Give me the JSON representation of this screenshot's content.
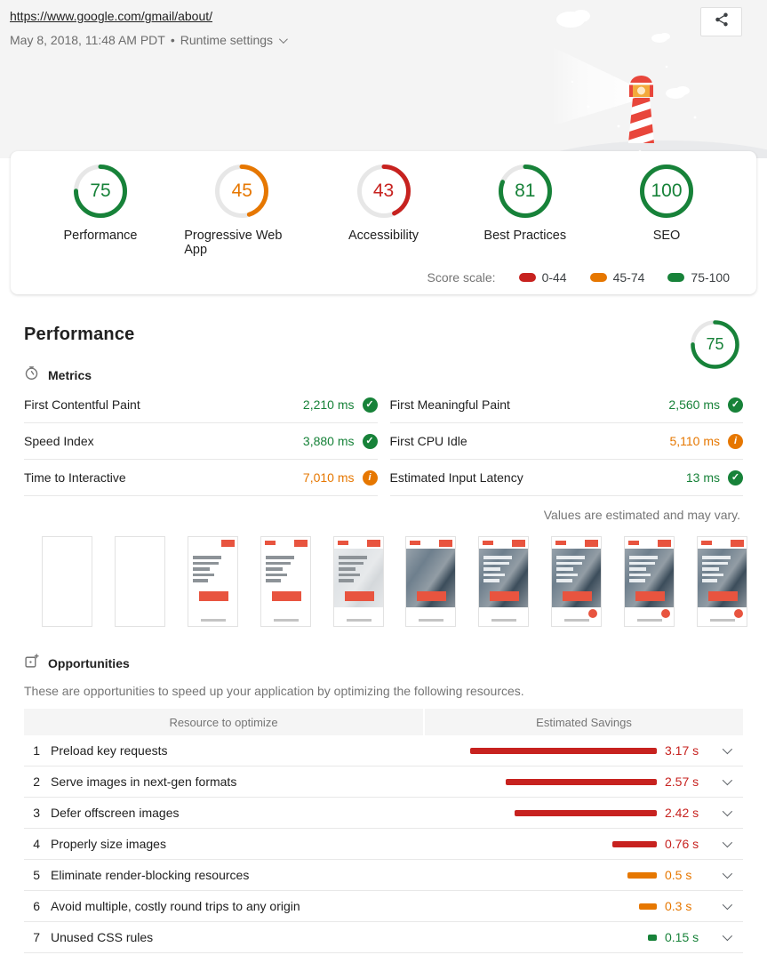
{
  "colors": {
    "pass": "#178239",
    "average": "#e67700",
    "fail": "#c7221f"
  },
  "badges": {
    "pass_glyph": "✓",
    "average_glyph": "i"
  },
  "header": {
    "url": "https://www.google.com/gmail/about/",
    "timestamp": "May 8, 2018, 11:48 AM PDT",
    "separator": "•",
    "runtime_settings_label": "Runtime settings"
  },
  "scores": [
    {
      "label": "Performance",
      "score": 75,
      "category": "pass"
    },
    {
      "label": "Progressive Web App",
      "score": 45,
      "category": "average"
    },
    {
      "label": "Accessibility",
      "score": 43,
      "category": "fail"
    },
    {
      "label": "Best Practices",
      "score": 81,
      "category": "pass"
    },
    {
      "label": "SEO",
      "score": 100,
      "category": "pass"
    }
  ],
  "score_scale": {
    "label": "Score scale:",
    "ranges": [
      {
        "label": "0-44",
        "category": "fail"
      },
      {
        "label": "45-74",
        "category": "average"
      },
      {
        "label": "75-100",
        "category": "pass"
      }
    ]
  },
  "performance_section": {
    "title": "Performance",
    "gauge": {
      "score": 75,
      "category": "pass"
    },
    "metrics_header": "Metrics",
    "metrics": [
      {
        "label": "First Contentful Paint",
        "value": "2,210 ms",
        "status": "pass"
      },
      {
        "label": "First Meaningful Paint",
        "value": "2,560 ms",
        "status": "pass"
      },
      {
        "label": "Speed Index",
        "value": "3,880 ms",
        "status": "pass"
      },
      {
        "label": "First CPU Idle",
        "value": "5,110 ms",
        "status": "average"
      },
      {
        "label": "Time to Interactive",
        "value": "7,010 ms",
        "status": "average"
      },
      {
        "label": "Estimated Input Latency",
        "value": "13 ms",
        "status": "pass"
      }
    ],
    "estimate_note": "Values are estimated and may vary.",
    "filmstrip_stages": [
      "blank",
      "blank",
      "text",
      "text-logo",
      "text-fade",
      "photo",
      "photo-text",
      "photo-text-fab",
      "photo-text-fab",
      "photo-text-fab"
    ]
  },
  "opportunities": {
    "title": "Opportunities",
    "description": "These are opportunities to speed up your application by optimizing the following resources.",
    "columns": [
      "Resource to optimize",
      "Estimated Savings"
    ],
    "rows": [
      {
        "num": "1",
        "label": "Preload key requests",
        "savings_s": 3.17,
        "savings_label": "3.17 s",
        "severity": "fail"
      },
      {
        "num": "2",
        "label": "Serve images in next-gen formats",
        "savings_s": 2.57,
        "savings_label": "2.57 s",
        "severity": "fail"
      },
      {
        "num": "3",
        "label": "Defer offscreen images",
        "savings_s": 2.42,
        "savings_label": "2.42 s",
        "severity": "fail"
      },
      {
        "num": "4",
        "label": "Properly size images",
        "savings_s": 0.76,
        "savings_label": "0.76 s",
        "severity": "fail"
      },
      {
        "num": "5",
        "label": "Eliminate render-blocking resources",
        "savings_s": 0.5,
        "savings_label": "0.5 s",
        "severity": "average"
      },
      {
        "num": "6",
        "label": "Avoid multiple, costly round trips to any origin",
        "savings_s": 0.3,
        "savings_label": "0.3 s",
        "severity": "average"
      },
      {
        "num": "7",
        "label": "Unused CSS rules",
        "savings_s": 0.15,
        "savings_label": "0.15 s",
        "severity": "pass"
      }
    ]
  }
}
